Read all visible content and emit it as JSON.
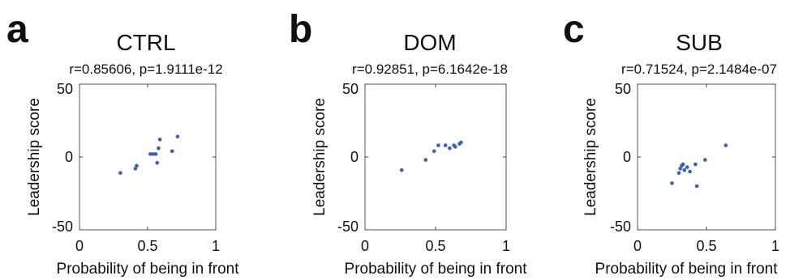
{
  "chart_data": [
    {
      "type": "scatter",
      "panel": "a",
      "title": "CTRL",
      "subtitle": "r=0.85606, p=1.9111e-12",
      "xlabel": "Probability of being in front",
      "ylabel": "Leadership score",
      "xlim": [
        0,
        1
      ],
      "ylim": [
        -50,
        50
      ],
      "xticks": [
        "0",
        "0.5",
        "1"
      ],
      "yticks": [
        "50",
        "0",
        "-50"
      ],
      "grid": false,
      "marker_color": "#3a5fb8",
      "points": [
        {
          "x": 0.3,
          "y": -11
        },
        {
          "x": 0.41,
          "y": -8
        },
        {
          "x": 0.42,
          "y": -6
        },
        {
          "x": 0.52,
          "y": 2
        },
        {
          "x": 0.54,
          "y": 2
        },
        {
          "x": 0.56,
          "y": 2
        },
        {
          "x": 0.58,
          "y": 6
        },
        {
          "x": 0.59,
          "y": 12
        },
        {
          "x": 0.57,
          "y": -4
        },
        {
          "x": 0.68,
          "y": 4
        },
        {
          "x": 0.72,
          "y": 14
        }
      ]
    },
    {
      "type": "scatter",
      "panel": "b",
      "title": "DOM",
      "subtitle": "r=0.92851, p=6.1642e-18",
      "xlabel": "Probability of being in front",
      "ylabel": "Leadership score",
      "xlim": [
        0,
        1
      ],
      "ylim": [
        -50,
        50
      ],
      "xticks": [
        "0",
        "0.5",
        "1"
      ],
      "yticks": [
        "50",
        "0",
        "-50"
      ],
      "grid": false,
      "marker_color": "#3a5fb8",
      "points": [
        {
          "x": 0.26,
          "y": -9
        },
        {
          "x": 0.43,
          "y": -2
        },
        {
          "x": 0.49,
          "y": 4
        },
        {
          "x": 0.52,
          "y": 8
        },
        {
          "x": 0.57,
          "y": 8
        },
        {
          "x": 0.6,
          "y": 6
        },
        {
          "x": 0.63,
          "y": 8
        },
        {
          "x": 0.64,
          "y": 7
        },
        {
          "x": 0.67,
          "y": 9
        },
        {
          "x": 0.68,
          "y": 10
        }
      ]
    },
    {
      "type": "scatter",
      "panel": "c",
      "title": "SUB",
      "subtitle": "r=0.71524, p=2.1484e-07",
      "xlabel": "Probability of being in front",
      "ylabel": "Leadership score",
      "xlim": [
        0,
        1
      ],
      "ylim": [
        -50,
        50
      ],
      "xticks": [
        "0",
        "0.5",
        "1"
      ],
      "yticks": [
        "50",
        "0",
        "-50"
      ],
      "grid": false,
      "marker_color": "#3a5fb8",
      "points": [
        {
          "x": 0.25,
          "y": -18
        },
        {
          "x": 0.3,
          "y": -11
        },
        {
          "x": 0.31,
          "y": -8
        },
        {
          "x": 0.32,
          "y": -6
        },
        {
          "x": 0.33,
          "y": -5
        },
        {
          "x": 0.34,
          "y": -9
        },
        {
          "x": 0.36,
          "y": -7
        },
        {
          "x": 0.38,
          "y": -10
        },
        {
          "x": 0.42,
          "y": -5
        },
        {
          "x": 0.43,
          "y": -20
        },
        {
          "x": 0.49,
          "y": -2
        },
        {
          "x": 0.64,
          "y": 8
        }
      ]
    }
  ]
}
